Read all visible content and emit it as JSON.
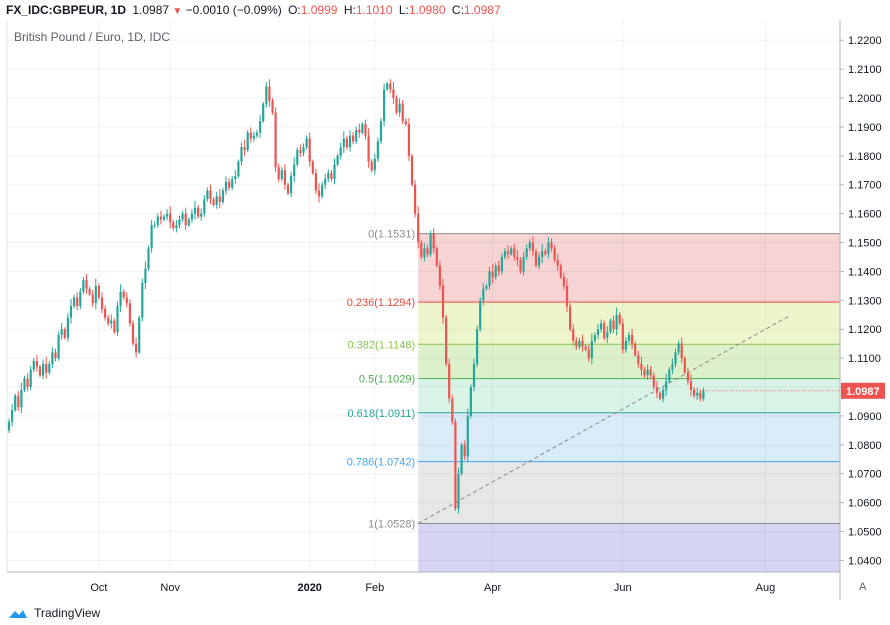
{
  "header": {
    "symbol": "FX_IDC:GBPEUR, 1D",
    "last": "1.0987",
    "change": "−0.0010 (−0.09%)",
    "open_label": "O:",
    "open": "1.0999",
    "high_label": "H:",
    "high": "1.1010",
    "low_label": "L:",
    "low": "1.0980",
    "close_label": "C:",
    "close": "1.0987"
  },
  "footer": {
    "brand": "TradingView"
  },
  "axis_scale_button": "A",
  "chart_data": {
    "type": "candlestick",
    "title": "British Pound / Euro, 1D, IDC",
    "y_axis": {
      "min": 1.036,
      "max": 1.227,
      "ticks": [
        "1.2200",
        "1.2100",
        "1.2000",
        "1.1900",
        "1.1800",
        "1.1700",
        "1.1600",
        "1.1500",
        "1.1400",
        "1.1300",
        "1.1200",
        "1.1100",
        "1.1000",
        "1.0900",
        "1.0800",
        "1.0700",
        "1.0600",
        "1.0500",
        "1.0400"
      ],
      "tick_values": [
        1.22,
        1.21,
        1.2,
        1.19,
        1.18,
        1.17,
        1.16,
        1.15,
        1.14,
        1.13,
        1.12,
        1.11,
        1.1,
        1.09,
        1.08,
        1.07,
        1.06,
        1.05,
        1.04
      ],
      "last_price_label": "1.0987",
      "last_price": 1.0987
    },
    "x_axis": {
      "labels": [
        "Oct",
        "Nov",
        "2020",
        "Feb",
        "Apr",
        "Jun",
        "Aug"
      ],
      "label_bold": [
        false,
        false,
        true,
        false,
        false,
        false,
        false
      ],
      "label_index": [
        29,
        52,
        97,
        118,
        156,
        198,
        244
      ]
    },
    "fibonacci": {
      "start_index": 132,
      "end_index": 252,
      "levels": [
        {
          "label": "0(1.1531)",
          "value": 1.1531,
          "color": "#8c8c8c"
        },
        {
          "label": "0.236(1.1294)",
          "value": 1.1294,
          "color": "#e74c3c"
        },
        {
          "label": "0.382(1.1148)",
          "value": 1.1148,
          "color": "#8bc34a"
        },
        {
          "label": "0.5(1.1029)",
          "value": 1.1029,
          "color": "#4caf50"
        },
        {
          "label": "0.618(1.0911)",
          "value": 1.0911,
          "color": "#26a69a"
        },
        {
          "label": "0.786(1.0742)",
          "value": 1.0742,
          "color": "#42a5f5"
        },
        {
          "label": "1(1.0528)",
          "value": 1.0528,
          "color": "#8c8c8c"
        }
      ],
      "zone_colors": [
        "#f4cccc",
        "#eaf3c4",
        "#d6efc2",
        "#d2f2e3",
        "#d2e8f6",
        "#e3e3e3"
      ],
      "below_zone_color": "#d0cff2"
    },
    "trendline": {
      "start": [
        132,
        1.0528
      ],
      "end": [
        252,
        1.1248
      ]
    },
    "colors": {
      "up": "#26a69a",
      "down": "#ef5350"
    },
    "close": [
      1.088,
      1.092,
      1.097,
      1.093,
      1.099,
      1.103,
      1.1,
      1.106,
      1.109,
      1.107,
      1.104,
      1.108,
      1.105,
      1.108,
      1.112,
      1.11,
      1.118,
      1.12,
      1.117,
      1.124,
      1.128,
      1.131,
      1.128,
      1.133,
      1.137,
      1.134,
      1.132,
      1.129,
      1.135,
      1.131,
      1.127,
      1.124,
      1.122,
      1.123,
      1.119,
      1.128,
      1.133,
      1.131,
      1.129,
      1.122,
      1.115,
      1.112,
      1.124,
      1.136,
      1.141,
      1.148,
      1.156,
      1.156,
      1.159,
      1.158,
      1.159,
      1.16,
      1.157,
      1.155,
      1.156,
      1.158,
      1.16,
      1.156,
      1.158,
      1.16,
      1.162,
      1.159,
      1.16,
      1.165,
      1.168,
      1.165,
      1.163,
      1.166,
      1.164,
      1.168,
      1.171,
      1.169,
      1.172,
      1.173,
      1.178,
      1.183,
      1.182,
      1.188,
      1.186,
      1.187,
      1.188,
      1.192,
      1.198,
      1.204,
      1.199,
      1.195,
      1.176,
      1.172,
      1.175,
      1.17,
      1.167,
      1.173,
      1.177,
      1.182,
      1.181,
      1.183,
      1.186,
      1.178,
      1.174,
      1.168,
      1.166,
      1.17,
      1.172,
      1.174,
      1.172,
      1.177,
      1.18,
      1.183,
      1.186,
      1.183,
      1.187,
      1.185,
      1.189,
      1.188,
      1.191,
      1.187,
      1.178,
      1.175,
      1.179,
      1.185,
      1.192,
      1.203,
      1.205,
      1.203,
      1.2,
      1.195,
      1.198,
      1.192,
      1.191,
      1.18,
      1.17,
      1.16,
      1.15,
      1.145,
      1.148,
      1.146,
      1.153,
      1.148,
      1.142,
      1.135,
      1.124,
      1.108,
      1.096,
      1.088,
      1.058,
      1.07,
      1.08,
      1.076,
      1.09,
      1.1,
      1.108,
      1.12,
      1.13,
      1.134,
      1.135,
      1.14,
      1.138,
      1.142,
      1.14,
      1.145,
      1.147,
      1.146,
      1.148,
      1.145,
      1.144,
      1.14,
      1.145,
      1.148,
      1.15,
      1.147,
      1.142,
      1.145,
      1.147,
      1.146,
      1.15,
      1.148,
      1.144,
      1.142,
      1.138,
      1.135,
      1.128,
      1.12,
      1.116,
      1.114,
      1.116,
      1.114,
      1.113,
      1.11,
      1.116,
      1.118,
      1.12,
      1.122,
      1.117,
      1.119,
      1.123,
      1.12,
      1.125,
      1.122,
      1.113,
      1.116,
      1.118,
      1.115,
      1.111,
      1.108,
      1.106,
      1.104,
      1.106,
      1.104,
      1.1,
      1.098,
      1.096,
      1.099,
      1.102,
      1.106,
      1.108,
      1.112,
      1.115,
      1.11,
      1.105,
      1.102,
      1.099,
      1.097,
      1.098,
      1.096,
      1.0987
    ]
  }
}
